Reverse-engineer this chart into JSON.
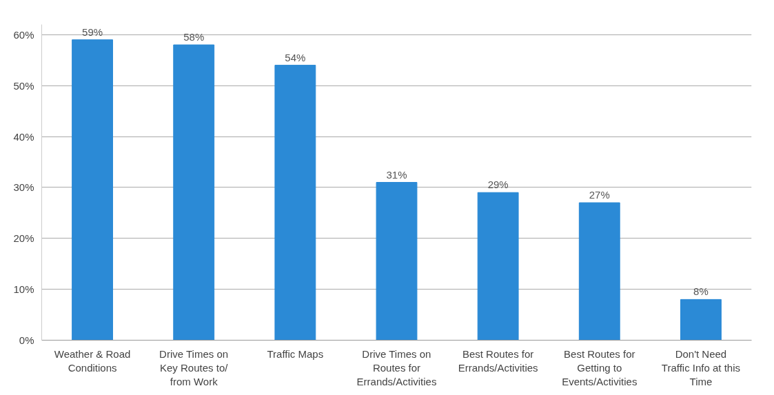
{
  "chart_data": {
    "type": "bar",
    "categories": [
      "Weather & Road\nConditions",
      "Drive Times on\nKey Routes to/\nfrom Work",
      "Traffic Maps",
      "Drive Times on\nRoutes for\nErrands/Activities",
      "Best Routes for\nErrands/Activities",
      "Best Routes for\nGetting to\nEvents/Activities",
      "Don't Need\nTraffic Info at this\nTime"
    ],
    "values": [
      59,
      58,
      54,
      31,
      29,
      27,
      8
    ],
    "value_labels": [
      "59%",
      "58%",
      "54%",
      "31%",
      "29%",
      "27%",
      "8%"
    ],
    "color": "#2b8ad6",
    "ylim": [
      0,
      62
    ],
    "yticks": [
      {
        "value": 0,
        "label": "0%"
      },
      {
        "value": 10,
        "label": "10%"
      },
      {
        "value": 20,
        "label": "20%"
      },
      {
        "value": 30,
        "label": "30%"
      },
      {
        "value": 40,
        "label": "40%"
      },
      {
        "value": 50,
        "label": "50%"
      },
      {
        "value": 60,
        "label": "60%"
      }
    ],
    "grid": "y"
  }
}
